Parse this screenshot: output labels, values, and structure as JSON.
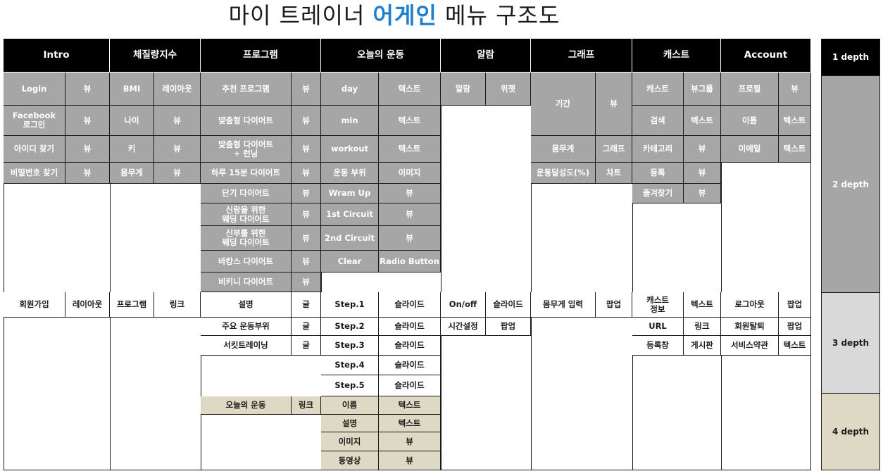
{
  "title": {
    "pre": "마이 트레이너 ",
    "accent": "어게인",
    "post": " 메뉴 구조도"
  },
  "colors": {
    "depth1": "#000000",
    "depth2": "#a6a6a6",
    "depth3": "#ffffff",
    "depth4": "#ddd9c4",
    "accent": "#1e7fd0"
  },
  "depth1": [
    "Intro",
    "체질량지수",
    "프로그램",
    "오늘의 운동",
    "알람",
    "그래프",
    "캐스트",
    "Account"
  ],
  "cells": {
    "intro_login": "Login",
    "intro_login_v": "뷰",
    "intro_fb": "Facebook\n로그인",
    "intro_fb_v": "뷰",
    "intro_findid": "아이디 찾기",
    "intro_findid_v": "뷰",
    "intro_findpw": "비밀번호 찾기",
    "intro_findpw_v": "뷰",
    "intro_signup": "회원가입",
    "intro_signup_v": "레이아웃",
    "bmi_bmi": "BMI",
    "bmi_bmi_v": "레이아웃",
    "bmi_age": "나이",
    "bmi_age_v": "뷰",
    "bmi_height": "키",
    "bmi_height_v": "뷰",
    "bmi_weight": "몸무게",
    "bmi_weight_v": "뷰",
    "bmi_program": "프로그램",
    "bmi_program_v": "링크",
    "p_rec": "추천 프로그램",
    "p_rec_v": "뷰",
    "p_custom": "맞춤형 다이어트",
    "p_custom_v": "뷰",
    "p_custom_run": "맞춤형 다이어트\n+ 런닝",
    "p_custom_run_v": "뷰",
    "p_15": "하루 15분 다이어트",
    "p_15_v": "뷰",
    "p_short": "단기 다이어트",
    "p_short_v": "뷰",
    "p_groom": "신랑을 위한\n웨딩 다이어트",
    "p_groom_v": "뷰",
    "p_bride": "신부를 위한\n웨딩 다이어트",
    "p_bride_v": "뷰",
    "p_vac": "바캉스 다이어트",
    "p_vac_v": "뷰",
    "p_bikini": "비키니 다이어트",
    "p_bikini_v": "뷰",
    "p_desc": "설명",
    "p_desc_v": "글",
    "p_main": "주요 운동부위",
    "p_main_v": "글",
    "p_circuit": "서킷트레이닝",
    "p_circuit_v": "글",
    "p_today": "오늘의 운동",
    "p_today_v": "링크",
    "w_day": "day",
    "w_day_v": "텍스트",
    "w_min": "min",
    "w_min_v": "텍스트",
    "w_workout": "workout",
    "w_workout_v": "텍스트",
    "w_part": "운동 부위",
    "w_part_v": "이미지",
    "w_warm": "Wram Up",
    "w_warm_v": "뷰",
    "w_c1": "1st Circuit",
    "w_c1_v": "뷰",
    "w_c2": "2nd Circuit",
    "w_c2_v": "뷰",
    "w_clear": "Clear",
    "w_clear_v": "Radio Button",
    "w_s1": "Step.1",
    "w_s1_v": "슬라이드",
    "w_s2": "Step.2",
    "w_s2_v": "슬라이드",
    "w_s3": "Step.3",
    "w_s3_v": "슬라이드",
    "w_s4": "Step.4",
    "w_s4_v": "슬라이드",
    "w_s5": "Step.5",
    "w_s5_v": "슬라이드",
    "w_name": "이름",
    "w_name_v": "텍스트",
    "w_desc": "설명",
    "w_desc_v": "텍스트",
    "w_img": "이미지",
    "w_img_v": "뷰",
    "w_video": "동영상",
    "w_video_v": "뷰",
    "a_alarm": "알람",
    "a_alarm_v": "위젯",
    "a_onoff": "On/off",
    "a_onoff_v": "슬라이드",
    "a_time": "시간설정",
    "a_time_v": "팝업",
    "g_period": "기간",
    "g_period_v": "뷰",
    "g_weight": "몸무게",
    "g_weight_v": "그래프",
    "g_rate": "운동달성도(%)",
    "g_rate_v": "차트",
    "g_input": "몸무게 입력",
    "g_input_v": "팝업",
    "c_cast": "캐스트",
    "c_cast_v": "뷰그룹",
    "c_search": "검색",
    "c_search_v": "텍스트",
    "c_cat": "카테고리",
    "c_cat_v": "뷰",
    "c_reg": "등록",
    "c_reg_v": "뷰",
    "c_fav": "즐겨찾기",
    "c_fav_v": "뷰",
    "c_info": "캐스트\n정보",
    "c_info_v": "텍스트",
    "c_url": "URL",
    "c_url_v": "링크",
    "c_regwin": "등록창",
    "c_regwin_v": "게시판",
    "ac_profile": "프로필",
    "ac_profile_v": "뷰",
    "ac_name": "이름",
    "ac_name_v": "텍스트",
    "ac_email": "이메일",
    "ac_email_v": "텍스트",
    "ac_logout": "로그아웃",
    "ac_logout_v": "팝업",
    "ac_withdraw": "회원탈퇴",
    "ac_withdraw_v": "팝업",
    "ac_terms": "서비스약관",
    "ac_terms_v": "텍스트"
  },
  "legend": {
    "d1": "1 depth",
    "d2": "2 depth",
    "d3": "3 depth",
    "d4": "4 depth"
  }
}
